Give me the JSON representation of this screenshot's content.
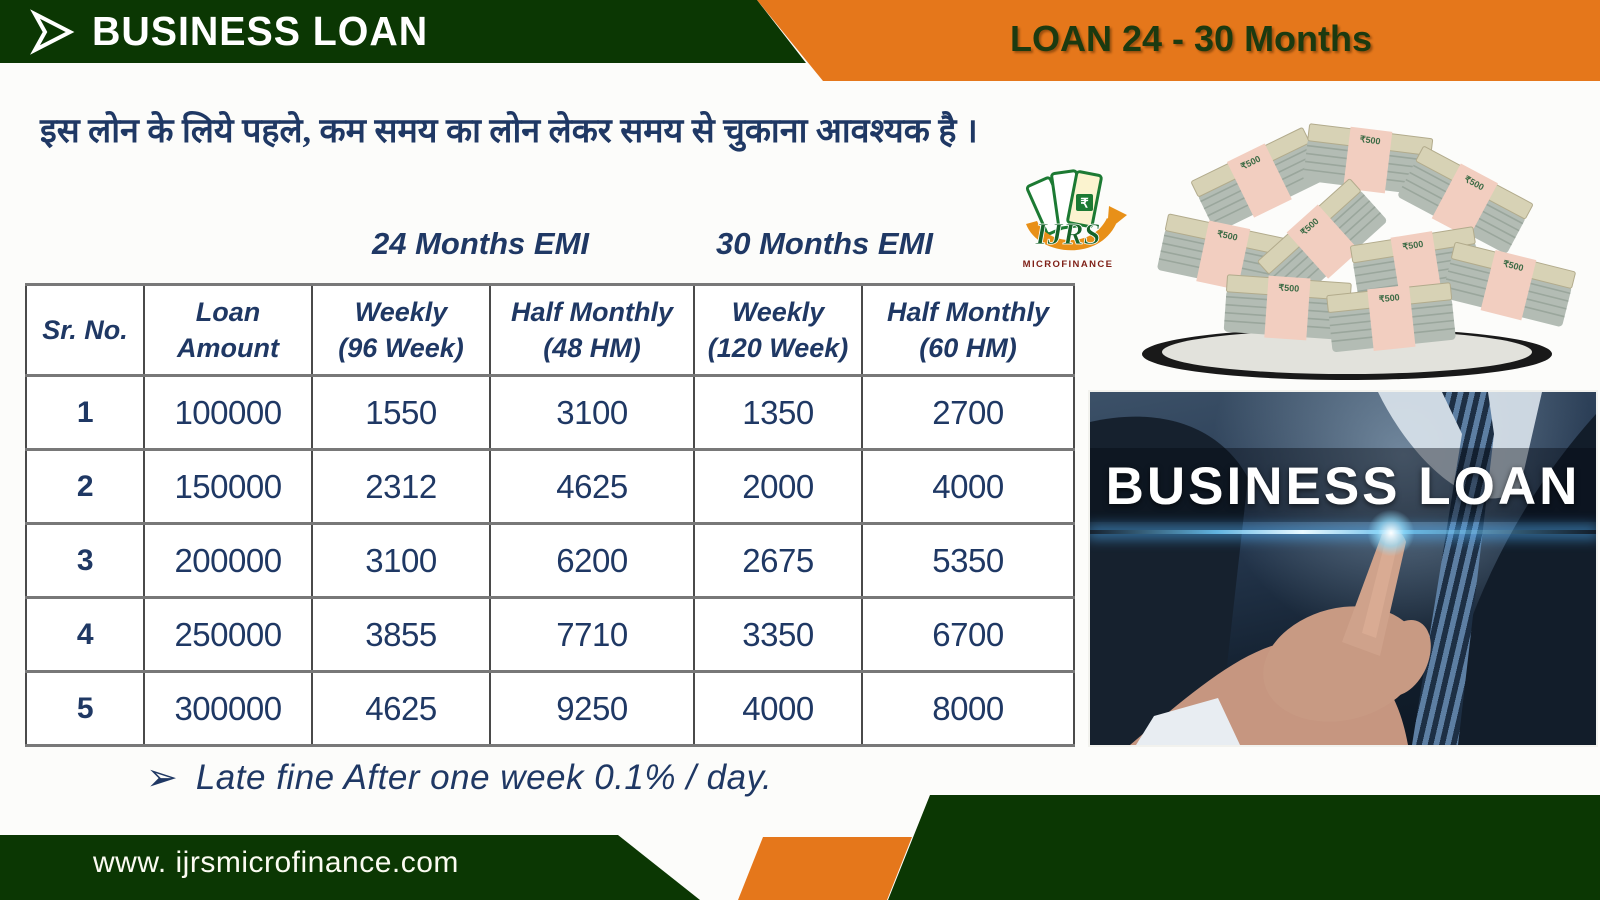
{
  "colors": {
    "dark_green": "#0b3703",
    "orange": "#e5771b",
    "navy_text": "#1f3864",
    "white": "#ffffff"
  },
  "header": {
    "left_title": "BUSINESS LOAN",
    "right_title": "LOAN 24 - 30 Months"
  },
  "intro": {
    "hindi": "इस लोन के लिये पहले, कम समय का लोन लेकर समय से चुकाना आवश्यक है ।"
  },
  "emi_groups": {
    "g24": "24 Months EMI",
    "g30": "30 Months EMI"
  },
  "table": {
    "columns": [
      "Sr. No.",
      "Loan\nAmount",
      "Weekly\n(96 Week)",
      "Half Monthly\n(48 HM)",
      "Weekly\n(120 Week)",
      "Half Monthly\n(60 HM)"
    ],
    "rows": [
      [
        "1",
        "100000",
        "1550",
        "3100",
        "1350",
        "2700"
      ],
      [
        "2",
        "150000",
        "2312",
        "4625",
        "2000",
        "4000"
      ],
      [
        "3",
        "200000",
        "3100",
        "6200",
        "2675",
        "5350"
      ],
      [
        "4",
        "250000",
        "3855",
        "7710",
        "3350",
        "6700"
      ],
      [
        "5",
        "300000",
        "4625",
        "9250",
        "4000",
        "8000"
      ]
    ]
  },
  "note": {
    "bullet": "➢",
    "text": "Late fine After one week 0.1% / day."
  },
  "logo": {
    "title": "IJRS",
    "subtitle": "MICROFINANCE",
    "rupee": "₹"
  },
  "photo": {
    "caption": "BUSINESS LOAN"
  },
  "footer": {
    "website": "www. ijrsmicrofinance.com"
  }
}
